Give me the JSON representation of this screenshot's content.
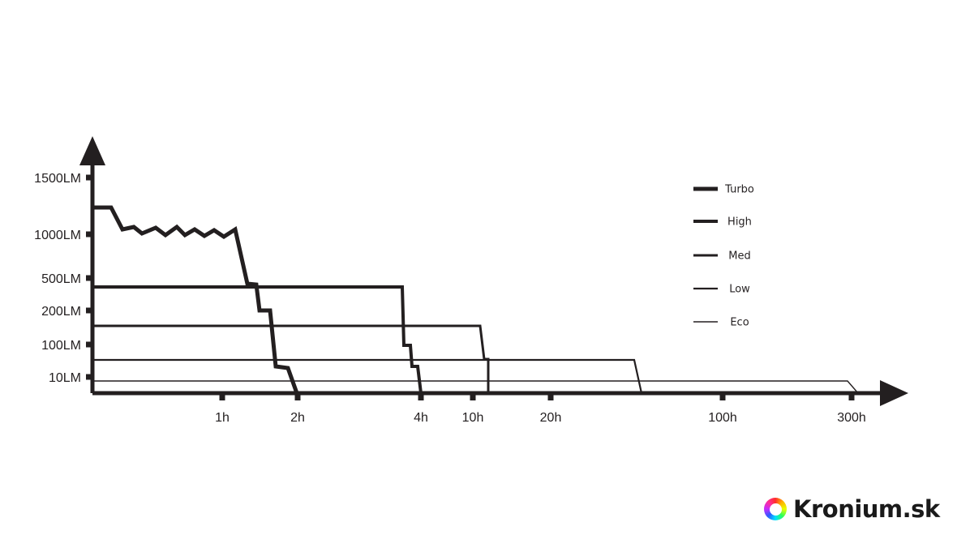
{
  "chart_data": {
    "type": "line",
    "title": "",
    "xlabel": "",
    "ylabel": "",
    "y_ticks": [
      "1500LM",
      "1000LM",
      "500LM",
      "200LM",
      "100LM",
      "10LM"
    ],
    "x_ticks": [
      "1h",
      "2h",
      "4h",
      "10h",
      "20h",
      "100h",
      "300h"
    ],
    "legend_position": "top-right",
    "series": [
      {
        "name": "Turbo",
        "line": "heaviest",
        "points": [
          [
            "0h",
            "1200LM"
          ],
          [
            "~0.2h",
            "1200LM"
          ],
          [
            "~0.3h",
            "1050LM"
          ],
          [
            "~0.5h",
            "1000LM"
          ],
          [
            "~1.1h",
            "1050LM"
          ],
          [
            "~1.3h",
            "500LM"
          ],
          [
            "~1.5h",
            "200LM"
          ],
          [
            "~1.7h",
            "25LM"
          ],
          [
            "2h",
            "0LM"
          ]
        ]
      },
      {
        "name": "High",
        "line": "heavy",
        "points": [
          [
            "0h",
            "500LM"
          ],
          [
            "~3.6h",
            "500LM"
          ],
          [
            "~3.7h",
            "100LM"
          ],
          [
            "~3.9h",
            "25LM"
          ],
          [
            "4h",
            "0LM"
          ]
        ]
      },
      {
        "name": "Med",
        "line": "medium",
        "points": [
          [
            "0h",
            "200LM"
          ],
          [
            "~10.5h",
            "200LM"
          ],
          [
            "~11h",
            "80LM"
          ],
          [
            "~12h",
            "0LM"
          ]
        ]
      },
      {
        "name": "Low",
        "line": "light",
        "points": [
          [
            "0h",
            "80LM"
          ],
          [
            "~45h",
            "80LM"
          ],
          [
            "~50h",
            "0LM"
          ]
        ]
      },
      {
        "name": "Eco",
        "line": "lightest",
        "points": [
          [
            "0h",
            "25LM"
          ],
          [
            "~280h",
            "25LM"
          ],
          [
            "~300h",
            "0LM"
          ]
        ]
      }
    ]
  },
  "branding": {
    "text": "Kronium.sk",
    "icon": "rainbow-ring-logo"
  }
}
